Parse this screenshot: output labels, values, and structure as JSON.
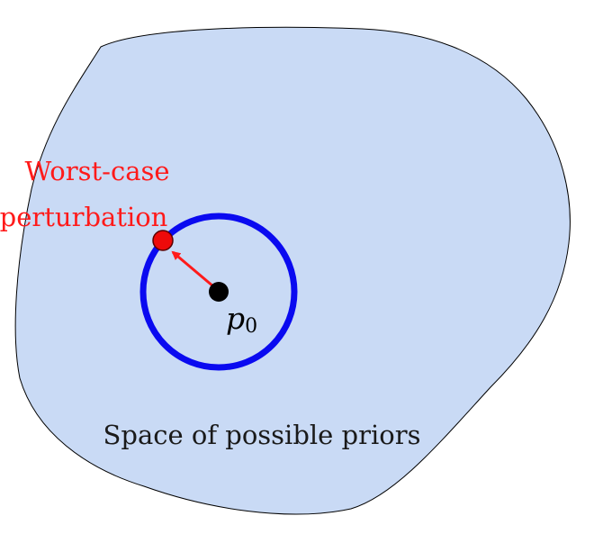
{
  "diagram": {
    "region_label": "Space of possible priors",
    "annotation": {
      "line1": "Worst-case",
      "line2": "perturbation"
    },
    "center_point": {
      "symbol": "p",
      "subscript": "0"
    }
  },
  "colors": {
    "region_fill": "#c9daf5",
    "region_stroke": "#000000",
    "ball_stroke": "#0a0af0",
    "annotation": "#ff1a1a",
    "center_point": "#000000",
    "perturbation_point": "#ee0a0a"
  }
}
